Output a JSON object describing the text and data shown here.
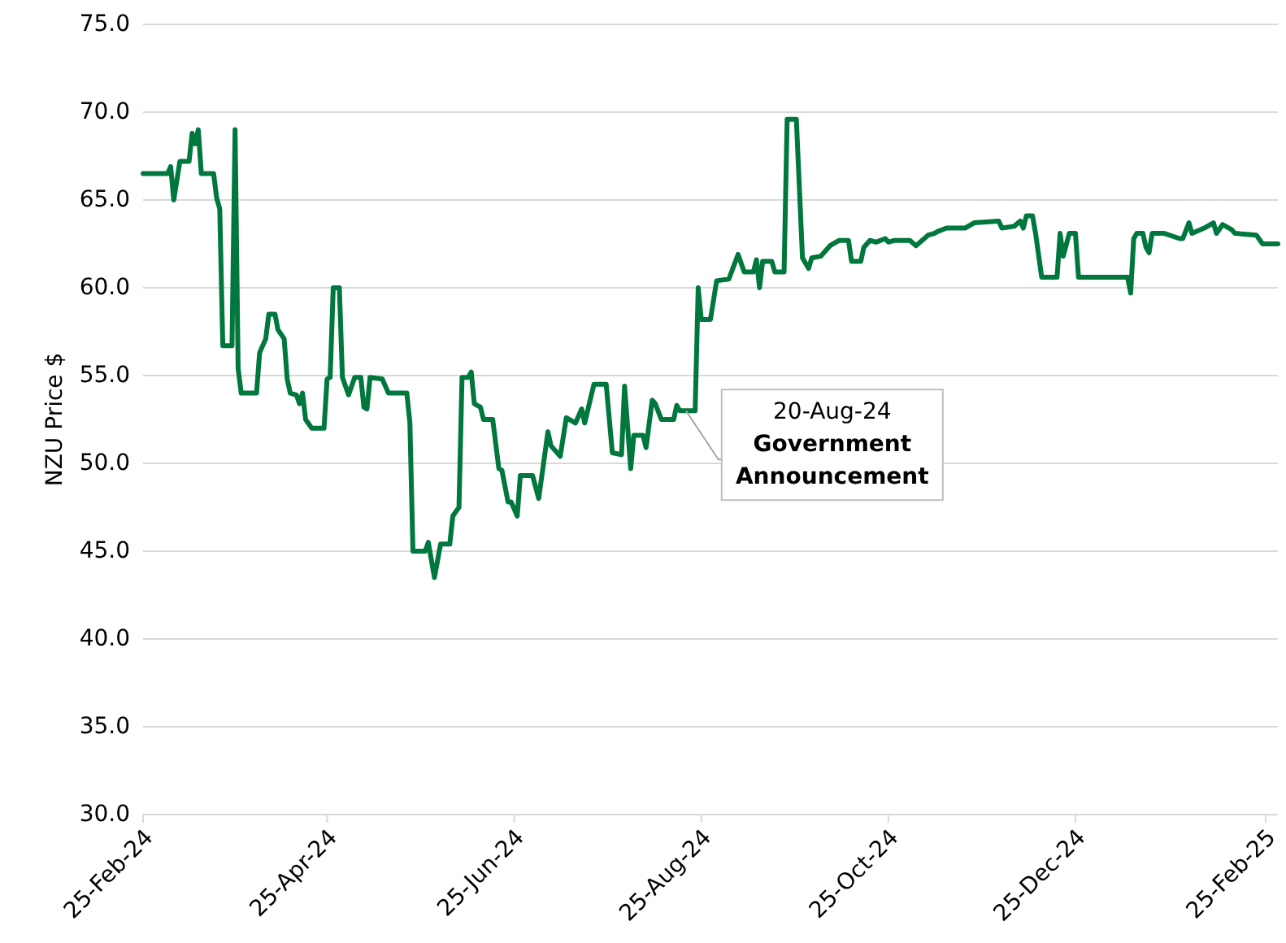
{
  "chart_data": {
    "type": "line",
    "ylabel": "NZU Price $",
    "xlim": [
      "2024-02-25",
      "2025-03-01"
    ],
    "xticks": [
      {
        "value": "2024-02-25",
        "label": "25-Feb-24"
      },
      {
        "value": "2024-04-25",
        "label": "25-Apr-24"
      },
      {
        "value": "2024-06-25",
        "label": "25-Jun-24"
      },
      {
        "value": "2024-08-25",
        "label": "25-Aug-24"
      },
      {
        "value": "2024-10-25",
        "label": "25-Oct-24"
      },
      {
        "value": "2024-12-25",
        "label": "25-Dec-24"
      },
      {
        "value": "2025-02-25",
        "label": "25-Feb-25"
      }
    ],
    "ylim": [
      30,
      75
    ],
    "yticks": [
      {
        "value": 30,
        "label": "30.0"
      },
      {
        "value": 35,
        "label": "35.0"
      },
      {
        "value": 40,
        "label": "40.0"
      },
      {
        "value": 45,
        "label": "45.0"
      },
      {
        "value": 50,
        "label": "50.0"
      },
      {
        "value": 55,
        "label": "55.0"
      },
      {
        "value": 60,
        "label": "60.0"
      },
      {
        "value": 65,
        "label": "65.0"
      },
      {
        "value": 70,
        "label": "70.0"
      },
      {
        "value": 75,
        "label": "75.0"
      }
    ],
    "grid": "y",
    "marker": "none",
    "line_style": "solid",
    "annotations": [
      {
        "text": "20-Aug-24\nGovernment\nAnnouncement",
        "x": "2024-08-20",
        "y": 53.0
      }
    ],
    "x": [
      "2024-02-25",
      "2024-03-04",
      "2024-03-05",
      "2024-03-06",
      "2024-03-08",
      "2024-03-11",
      "2024-03-12",
      "2024-03-13",
      "2024-03-14",
      "2024-03-15",
      "2024-03-19",
      "2024-03-20",
      "2024-03-21",
      "2024-03-22",
      "2024-03-25",
      "2024-03-26",
      "2024-03-27",
      "2024-03-28",
      "2024-04-02",
      "2024-04-03",
      "2024-04-05",
      "2024-04-06",
      "2024-04-08",
      "2024-04-09",
      "2024-04-11",
      "2024-04-12",
      "2024-04-13",
      "2024-04-15",
      "2024-04-16",
      "2024-04-17",
      "2024-04-18",
      "2024-04-20",
      "2024-04-24",
      "2024-04-25",
      "2024-04-26",
      "2024-04-27",
      "2024-04-29",
      "2024-04-30",
      "2024-05-02",
      "2024-05-04",
      "2024-05-06",
      "2024-05-07",
      "2024-05-08",
      "2024-05-09",
      "2024-05-13",
      "2024-05-15",
      "2024-05-21",
      "2024-05-22",
      "2024-05-23",
      "2024-05-27",
      "2024-05-28",
      "2024-05-30",
      "2024-06-01",
      "2024-06-04",
      "2024-06-05",
      "2024-06-07",
      "2024-06-08",
      "2024-06-10",
      "2024-06-11",
      "2024-06-12",
      "2024-06-14",
      "2024-06-15",
      "2024-06-18",
      "2024-06-20",
      "2024-06-21",
      "2024-06-23",
      "2024-06-24",
      "2024-06-26",
      "2024-06-27",
      "2024-07-01",
      "2024-07-03",
      "2024-07-06",
      "2024-07-07",
      "2024-07-10",
      "2024-07-12",
      "2024-07-15",
      "2024-07-17",
      "2024-07-18",
      "2024-07-21",
      "2024-07-25",
      "2024-07-27",
      "2024-07-30",
      "2024-07-31",
      "2024-08-02",
      "2024-08-03",
      "2024-08-06",
      "2024-08-07",
      "2024-08-09",
      "2024-08-10",
      "2024-08-12",
      "2024-08-16",
      "2024-08-17",
      "2024-08-18",
      "2024-08-23",
      "2024-08-24",
      "2024-08-25",
      "2024-08-28",
      "2024-08-30",
      "2024-09-03",
      "2024-09-06",
      "2024-09-08",
      "2024-09-11",
      "2024-09-12",
      "2024-09-13",
      "2024-09-14",
      "2024-09-17",
      "2024-09-18",
      "2024-09-21",
      "2024-09-22",
      "2024-09-25",
      "2024-09-27",
      "2024-09-29",
      "2024-09-30",
      "2024-10-03",
      "2024-10-04",
      "2024-10-06",
      "2024-10-09",
      "2024-10-12",
      "2024-10-13",
      "2024-10-16",
      "2024-10-17",
      "2024-10-19",
      "2024-10-21",
      "2024-10-24",
      "2024-10-25",
      "2024-10-27",
      "2024-11-01",
      "2024-11-03",
      "2024-11-07",
      "2024-11-09",
      "2024-11-10",
      "2024-11-13",
      "2024-11-19",
      "2024-11-22",
      "2024-11-30",
      "2024-12-01",
      "2024-12-05",
      "2024-12-07",
      "2024-12-08",
      "2024-12-09",
      "2024-12-11",
      "2024-12-12",
      "2024-12-14",
      "2024-12-19",
      "2024-12-20",
      "2024-12-21",
      "2024-12-23",
      "2024-12-25",
      "2024-12-26",
      "2025-01-11",
      "2025-01-12",
      "2025-01-13",
      "2025-01-14",
      "2025-01-16",
      "2025-01-17",
      "2025-01-18",
      "2025-01-19",
      "2025-01-23",
      "2025-01-28",
      "2025-01-29",
      "2025-01-31",
      "2025-02-01",
      "2025-02-05",
      "2025-02-08",
      "2025-02-09",
      "2025-02-11",
      "2025-02-14",
      "2025-02-15",
      "2025-02-22",
      "2025-02-24",
      "2025-03-01"
    ],
    "series": [
      {
        "color": "#00773c",
        "values": [
          66.5,
          66.5,
          66.9,
          65.0,
          67.2,
          67.2,
          68.8,
          68.2,
          69.0,
          66.5,
          66.5,
          65.1,
          64.5,
          56.7,
          56.7,
          69.0,
          55.4,
          54.0,
          54.0,
          56.3,
          57.1,
          58.5,
          58.5,
          57.6,
          57.1,
          54.8,
          54.0,
          53.9,
          53.4,
          54.0,
          52.5,
          52.0,
          52.0,
          54.8,
          54.9,
          60.0,
          60.0,
          54.9,
          53.9,
          54.9,
          54.9,
          53.2,
          53.1,
          54.9,
          54.8,
          54.0,
          54.0,
          52.3,
          45.0,
          45.0,
          45.5,
          43.5,
          45.4,
          45.4,
          47.0,
          47.5,
          54.9,
          54.9,
          55.2,
          53.4,
          53.2,
          52.5,
          52.5,
          49.7,
          49.6,
          47.8,
          47.8,
          47.0,
          49.3,
          49.3,
          48.0,
          51.8,
          51.0,
          50.4,
          52.6,
          52.3,
          53.1,
          52.3,
          54.5,
          54.5,
          50.6,
          50.5,
          54.4,
          49.7,
          51.6,
          51.6,
          50.9,
          53.6,
          53.4,
          52.5,
          52.5,
          53.3,
          53.0,
          53.0,
          60.0,
          58.2,
          58.2,
          60.4,
          60.5,
          61.9,
          60.9,
          60.9,
          61.6,
          60.0,
          61.5,
          61.5,
          60.9,
          60.9,
          69.6,
          69.6,
          61.7,
          61.1,
          61.7,
          61.8,
          62.0,
          62.4,
          62.7,
          62.7,
          61.5,
          61.5,
          62.3,
          62.7,
          62.6,
          62.8,
          62.6,
          62.7,
          62.7,
          62.4,
          63.0,
          63.1,
          63.2,
          63.4,
          63.4,
          63.7,
          63.8,
          63.4,
          63.5,
          63.8,
          63.4,
          64.1,
          64.1,
          63.1,
          60.6,
          60.6,
          63.1,
          61.8,
          63.1,
          63.1,
          60.6,
          60.6,
          59.7,
          62.8,
          63.1,
          63.1,
          62.3,
          62.0,
          63.1,
          63.1,
          62.8,
          62.8,
          63.7,
          63.1,
          63.4,
          63.7,
          63.1,
          63.6,
          63.3,
          63.1,
          63.0,
          62.5,
          62.5
        ]
      }
    ]
  }
}
